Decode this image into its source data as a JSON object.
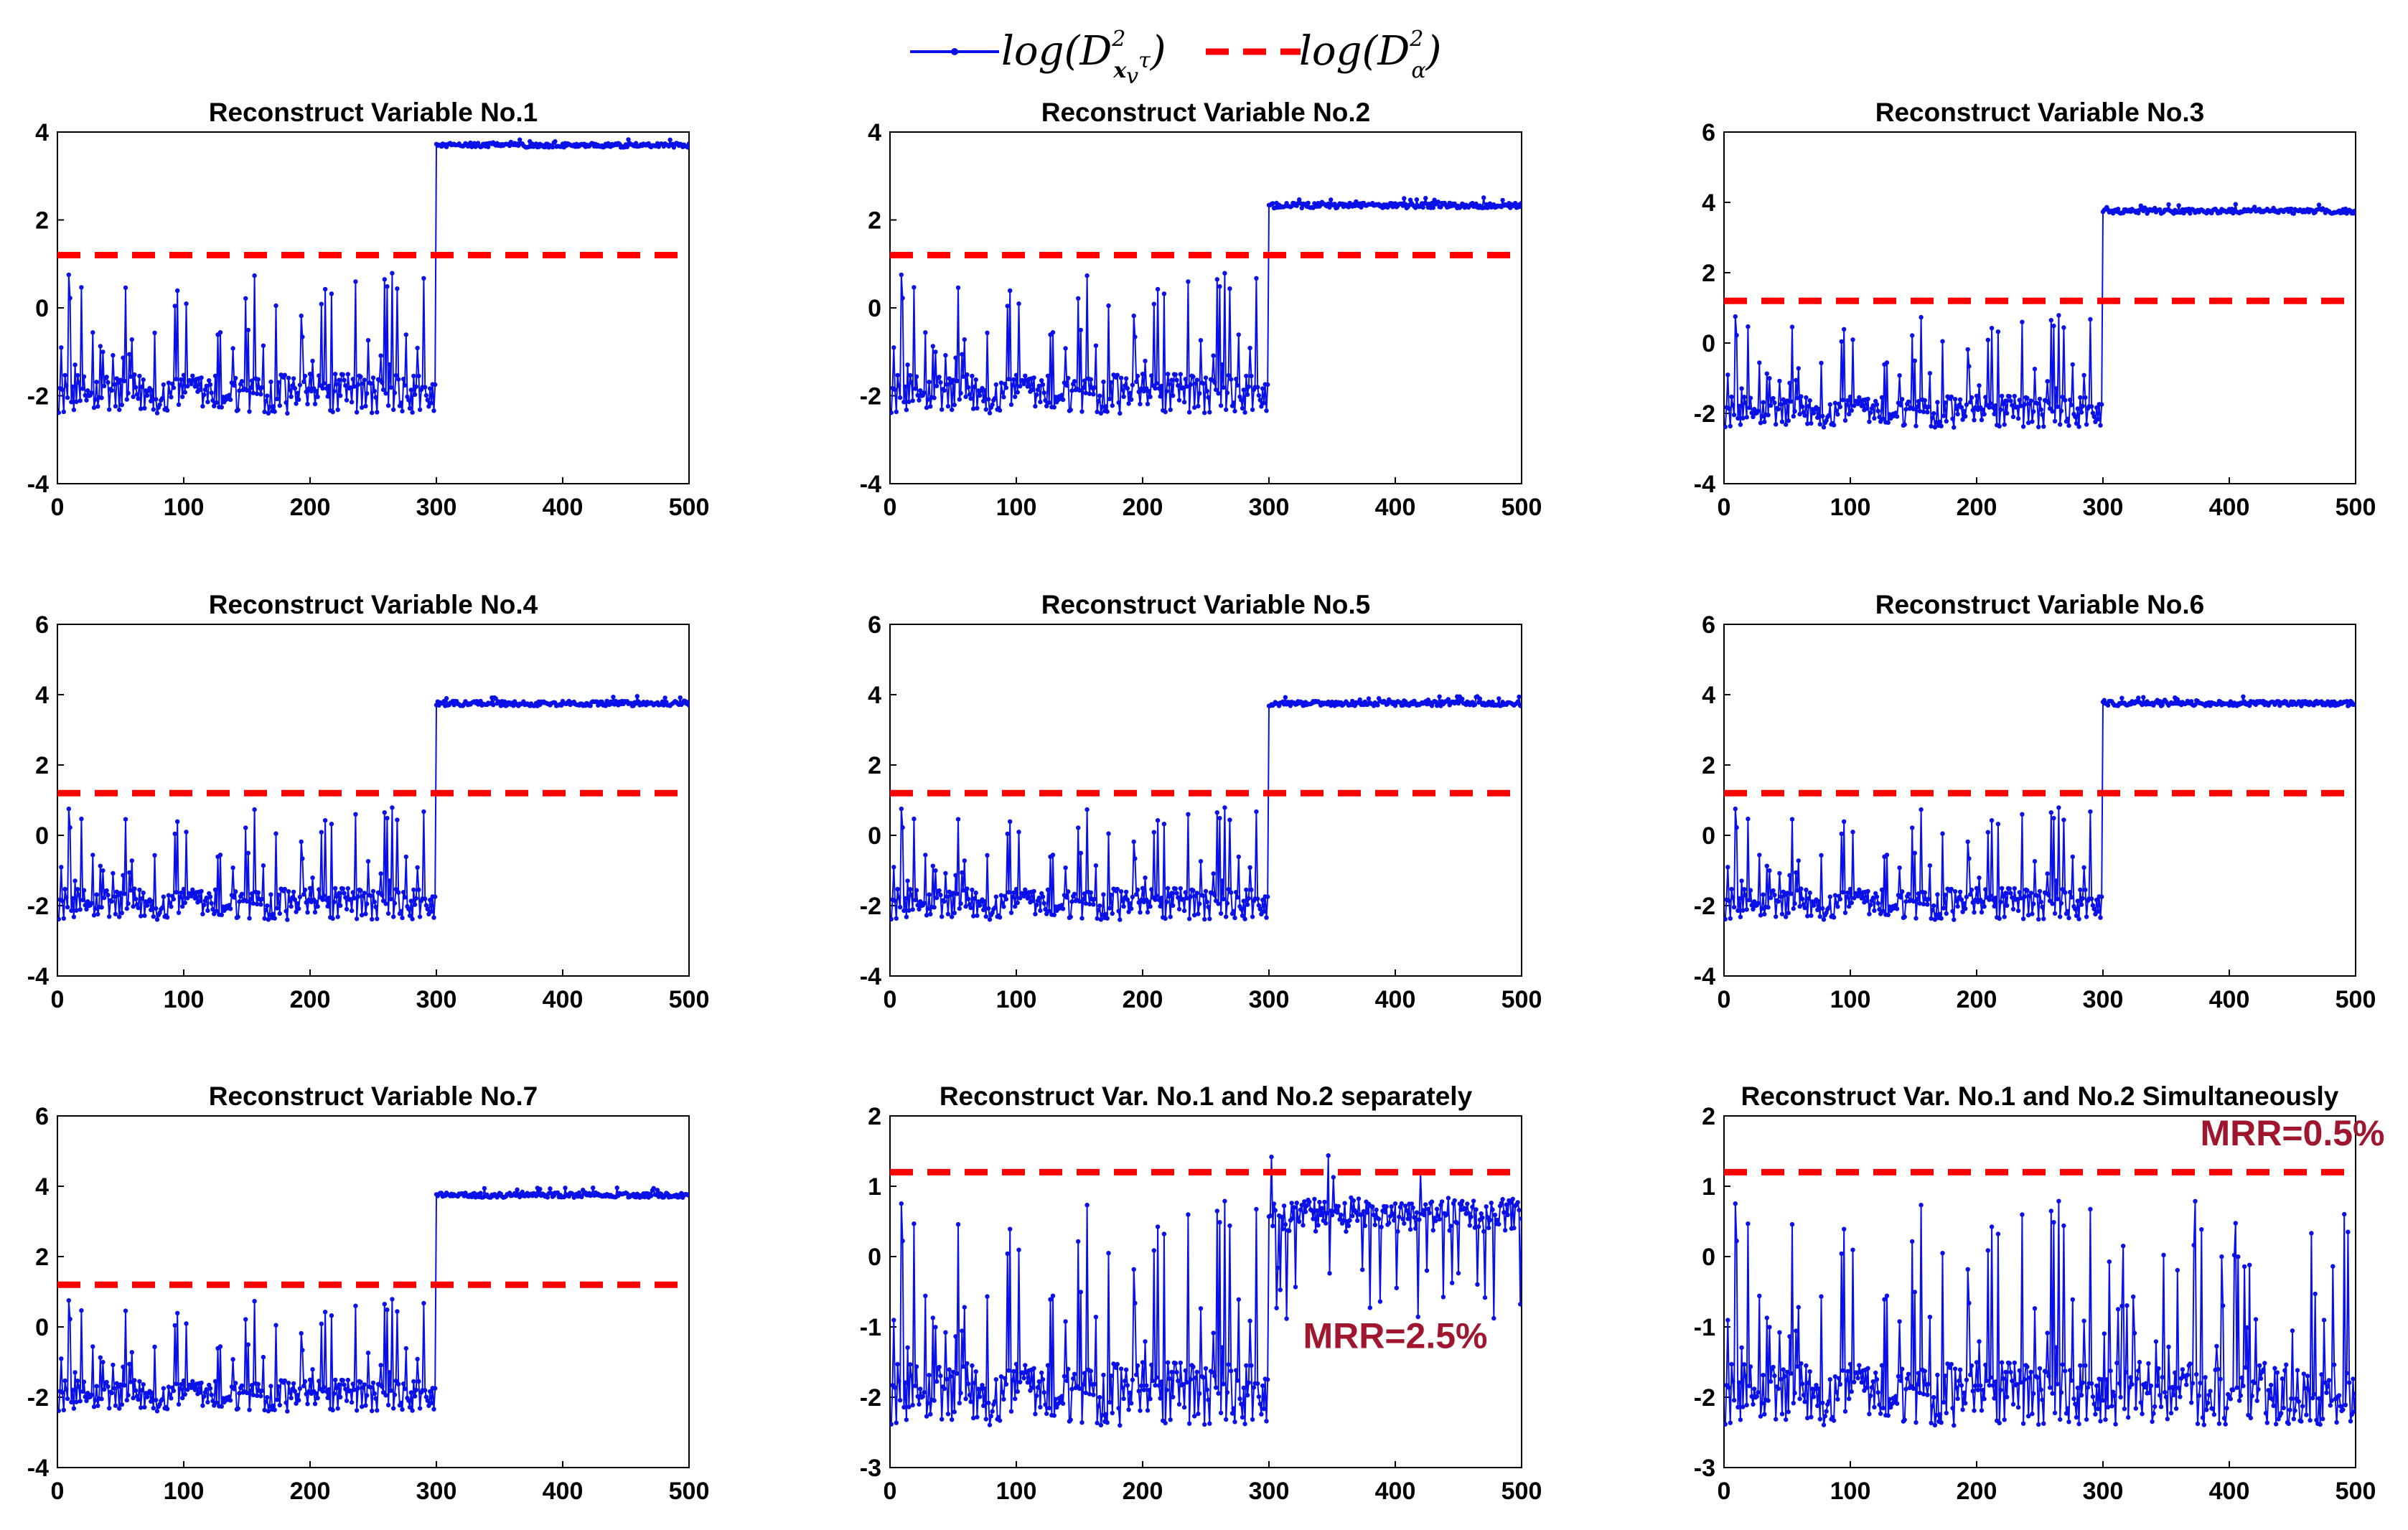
{
  "legend": {
    "series_prefix": "log(D",
    "series_sub": "x",
    "series_sub2": "v",
    "series_sup2": "τ",
    "series_sup": "2",
    "series_suffix": ")",
    "threshold_prefix": "log(D",
    "threshold_sub": "α",
    "threshold_sup": "2",
    "threshold_suffix": ")"
  },
  "colors": {
    "series": "#0a10e8",
    "threshold": "#ff0000",
    "annotation": "#a0162e",
    "axis": "#000000",
    "background": "#ffffff"
  },
  "chart_data": [
    {
      "type": "line",
      "title": "Reconstruct Variable No.1",
      "xlim": [
        0,
        500
      ],
      "ylim": [
        -4,
        4
      ],
      "xticks": [
        "0",
        "100",
        "200",
        "300",
        "400",
        "500"
      ],
      "yticks": [
        "-4",
        "-2",
        "0",
        "2",
        "4"
      ],
      "threshold": 1.2,
      "change_point": 300,
      "pre_level": -1.95,
      "post_level": 3.7,
      "post_noise": 0.05,
      "annotation": ""
    },
    {
      "type": "line",
      "title": "Reconstruct Variable No.2",
      "xlim": [
        0,
        500
      ],
      "ylim": [
        -4,
        4
      ],
      "xticks": [
        "0",
        "100",
        "200",
        "300",
        "400",
        "500"
      ],
      "yticks": [
        "-4",
        "-2",
        "0",
        "2",
        "4"
      ],
      "threshold": 1.2,
      "change_point": 300,
      "pre_level": -1.95,
      "post_level": 2.33,
      "post_noise": 0.06,
      "annotation": ""
    },
    {
      "type": "line",
      "title": "Reconstruct Variable No.3",
      "xlim": [
        0,
        500
      ],
      "ylim": [
        -4,
        6
      ],
      "xticks": [
        "0",
        "100",
        "200",
        "300",
        "400",
        "500"
      ],
      "yticks": [
        "-4",
        "-2",
        "0",
        "2",
        "4",
        "6"
      ],
      "threshold": 1.2,
      "change_point": 300,
      "pre_level": -1.95,
      "post_level": 3.75,
      "post_noise": 0.07,
      "annotation": ""
    },
    {
      "type": "line",
      "title": "Reconstruct Variable No.4",
      "xlim": [
        0,
        500
      ],
      "ylim": [
        -4,
        6
      ],
      "xticks": [
        "0",
        "100",
        "200",
        "300",
        "400",
        "500"
      ],
      "yticks": [
        "-4",
        "-2",
        "0",
        "2",
        "4",
        "6"
      ],
      "threshold": 1.2,
      "change_point": 300,
      "pre_level": -1.95,
      "post_level": 3.75,
      "post_noise": 0.07,
      "annotation": ""
    },
    {
      "type": "line",
      "title": "Reconstruct Variable No.5",
      "xlim": [
        0,
        500
      ],
      "ylim": [
        -4,
        6
      ],
      "xticks": [
        "0",
        "100",
        "200",
        "300",
        "400",
        "500"
      ],
      "yticks": [
        "-4",
        "-2",
        "0",
        "2",
        "4",
        "6"
      ],
      "threshold": 1.2,
      "change_point": 300,
      "pre_level": -1.95,
      "post_level": 3.75,
      "post_noise": 0.07,
      "annotation": ""
    },
    {
      "type": "line",
      "title": "Reconstruct Variable No.6",
      "xlim": [
        0,
        500
      ],
      "ylim": [
        -4,
        6
      ],
      "xticks": [
        "0",
        "100",
        "200",
        "300",
        "400",
        "500"
      ],
      "yticks": [
        "-4",
        "-2",
        "0",
        "2",
        "4",
        "6"
      ],
      "threshold": 1.2,
      "change_point": 300,
      "pre_level": -1.95,
      "post_level": 3.75,
      "post_noise": 0.07,
      "annotation": ""
    },
    {
      "type": "line",
      "title": "Reconstruct Variable No.7",
      "xlim": [
        0,
        500
      ],
      "ylim": [
        -4,
        6
      ],
      "xticks": [
        "0",
        "100",
        "200",
        "300",
        "400",
        "500"
      ],
      "yticks": [
        "-4",
        "-2",
        "0",
        "2",
        "4",
        "6"
      ],
      "threshold": 1.2,
      "change_point": 300,
      "pre_level": -1.95,
      "post_level": 3.75,
      "post_noise": 0.07,
      "annotation": ""
    },
    {
      "type": "line",
      "title": "Reconstruct Var. No.1 and No.2 separately",
      "xlim": [
        0,
        500
      ],
      "ylim": [
        -3,
        2
      ],
      "xticks": [
        "0",
        "100",
        "200",
        "300",
        "400",
        "500"
      ],
      "yticks": [
        "-3",
        "-2",
        "-1",
        "0",
        "1",
        "2"
      ],
      "threshold": 1.2,
      "change_point": 300,
      "pre_level": -1.95,
      "post_level": 0.6,
      "post_noise": 0.25,
      "annotation": "MRR=2.5%",
      "annotation_at": [
        400,
        -1.3
      ]
    },
    {
      "type": "line",
      "title": "Reconstruct Var. No.1 and No.2 Simultaneously",
      "xlim": [
        0,
        500
      ],
      "ylim": [
        -3,
        2
      ],
      "xticks": [
        "0",
        "100",
        "200",
        "300",
        "400",
        "500"
      ],
      "yticks": [
        "-3",
        "-2",
        "-1",
        "0",
        "1",
        "2"
      ],
      "threshold": 1.2,
      "change_point": 500,
      "pre_level": -1.95,
      "post_level": -1.95,
      "post_noise": 0.0,
      "annotation": "MRR=0.5%",
      "annotation_at": [
        450,
        1.58
      ]
    }
  ]
}
